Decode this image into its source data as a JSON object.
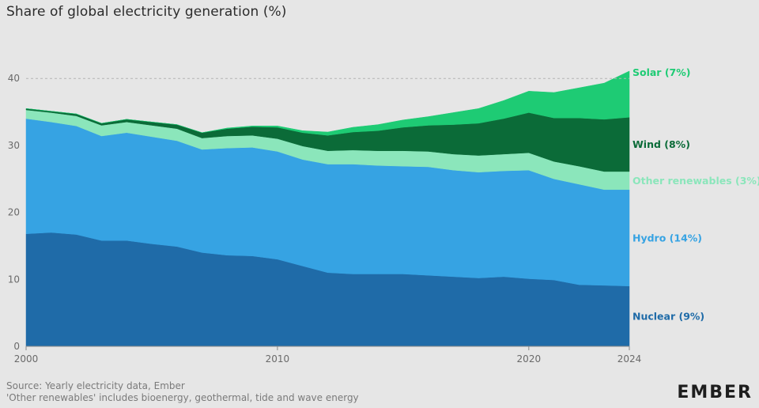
{
  "title": "Share of global electricity generation (%)",
  "footer": {
    "source": "Source: Yearly electricity data, Ember",
    "note": "'Other renewables' includes bioenergy, geothermal, tide and wave energy"
  },
  "logo": "EMBER",
  "chart_data": {
    "type": "area",
    "stacked": true,
    "title": "Share of global electricity generation (%)",
    "xlabel": "",
    "ylabel": "",
    "xlim": [
      2000,
      2024
    ],
    "ylim": [
      0,
      45
    ],
    "x_ticks": [
      2000,
      2010,
      2020,
      2024
    ],
    "y_ticks": [
      0,
      10,
      20,
      30,
      40
    ],
    "grid": false,
    "reference_line": {
      "y": 40,
      "style": "dashed"
    },
    "x": [
      2000,
      2001,
      2002,
      2003,
      2004,
      2005,
      2006,
      2007,
      2008,
      2009,
      2010,
      2011,
      2012,
      2013,
      2014,
      2015,
      2016,
      2017,
      2018,
      2019,
      2020,
      2021,
      2022,
      2023,
      2024
    ],
    "series": [
      {
        "name": "Nuclear",
        "end_label": "Nuclear (9%)",
        "color": "#1f6ba8",
        "values": [
          16.8,
          17.0,
          16.7,
          15.8,
          15.8,
          15.3,
          14.9,
          14.0,
          13.6,
          13.5,
          13.0,
          12.0,
          11.0,
          10.8,
          10.8,
          10.8,
          10.6,
          10.4,
          10.2,
          10.4,
          10.1,
          9.9,
          9.2,
          9.1,
          9.0
        ]
      },
      {
        "name": "Hydro",
        "end_label": "Hydro (14%)",
        "color": "#36a3e3",
        "values": [
          17.2,
          16.5,
          16.2,
          15.6,
          16.1,
          16.0,
          15.8,
          15.4,
          16.0,
          16.2,
          16.1,
          15.9,
          16.2,
          16.4,
          16.2,
          16.1,
          16.2,
          15.9,
          15.8,
          15.8,
          16.2,
          15.1,
          15.0,
          14.3,
          14.4
        ]
      },
      {
        "name": "Other renewables",
        "end_label": "Other renewables (3%)",
        "color": "#8be6bb",
        "values": [
          1.3,
          1.4,
          1.5,
          1.6,
          1.6,
          1.7,
          1.8,
          1.7,
          1.8,
          1.8,
          1.9,
          2.0,
          2.0,
          2.1,
          2.2,
          2.3,
          2.3,
          2.4,
          2.5,
          2.5,
          2.6,
          2.6,
          2.7,
          2.7,
          2.7
        ]
      },
      {
        "name": "Wind",
        "end_label": "Wind (8%)",
        "color": "#0b6b38",
        "values": [
          0.2,
          0.2,
          0.3,
          0.3,
          0.4,
          0.5,
          0.6,
          0.8,
          1.1,
          1.3,
          1.7,
          2.0,
          2.3,
          2.7,
          3.0,
          3.5,
          3.9,
          4.4,
          4.8,
          5.3,
          6.0,
          6.5,
          7.2,
          7.8,
          8.1
        ]
      },
      {
        "name": "Solar",
        "end_label": "Solar (7%)",
        "color": "#1ecb74",
        "values": [
          0.0,
          0.0,
          0.0,
          0.0,
          0.0,
          0.0,
          0.0,
          0.0,
          0.1,
          0.1,
          0.2,
          0.3,
          0.5,
          0.7,
          0.9,
          1.1,
          1.3,
          1.8,
          2.2,
          2.7,
          3.2,
          3.8,
          4.5,
          5.4,
          6.9
        ]
      }
    ]
  }
}
